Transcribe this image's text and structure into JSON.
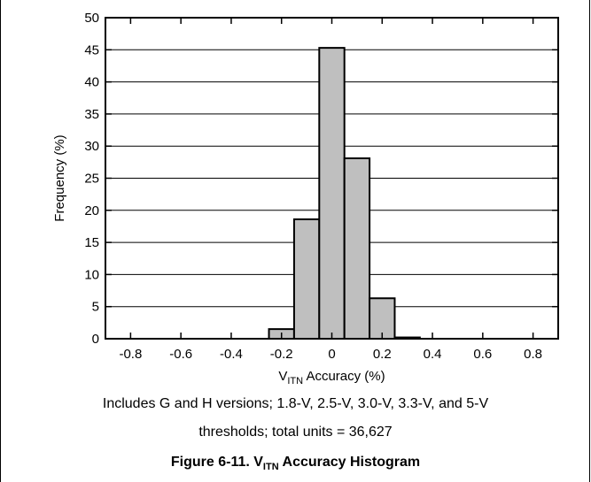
{
  "chart_data": {
    "type": "bar",
    "ylabel": "Frequency (%)",
    "xlabel": {
      "main": "V",
      "sub": "ITN",
      "rest": " Accuracy (%)"
    },
    "xlim": [
      -0.9,
      0.9
    ],
    "ylim": [
      0,
      50
    ],
    "bin_width": 0.1,
    "x_ticks": [
      -0.8,
      -0.6,
      -0.4,
      -0.2,
      0,
      0.2,
      0.4,
      0.6,
      0.8
    ],
    "x_tick_labels": [
      "-0.8",
      "-0.6",
      "-0.4",
      "-0.2",
      "0",
      "0.2",
      "0.4",
      "0.6",
      "0.8"
    ],
    "y_ticks": [
      0,
      5,
      10,
      15,
      20,
      25,
      30,
      35,
      40,
      45,
      50
    ],
    "y_tick_labels": [
      "0",
      "5",
      "10",
      "15",
      "20",
      "25",
      "30",
      "35",
      "40",
      "45",
      "50"
    ],
    "bins": [
      {
        "center": -0.2,
        "value": 1.5
      },
      {
        "center": -0.1,
        "value": 18.6
      },
      {
        "center": 0.0,
        "value": 45.3
      },
      {
        "center": 0.1,
        "value": 28.1
      },
      {
        "center": 0.2,
        "value": 6.3
      },
      {
        "center": 0.3,
        "value": 0.2
      }
    ],
    "bar_color": "#bfbfbf",
    "grid": true
  },
  "caption": {
    "line1": "Includes G and H versions; 1.8-V, 2.5-V, 3.0-V, 3.3-V, and 5-V",
    "line2": "thresholds; total units = 36,627"
  },
  "figure_title": {
    "prefix": "Figure 6-11. V",
    "sub": "ITN",
    "suffix": " Accuracy Histogram"
  }
}
